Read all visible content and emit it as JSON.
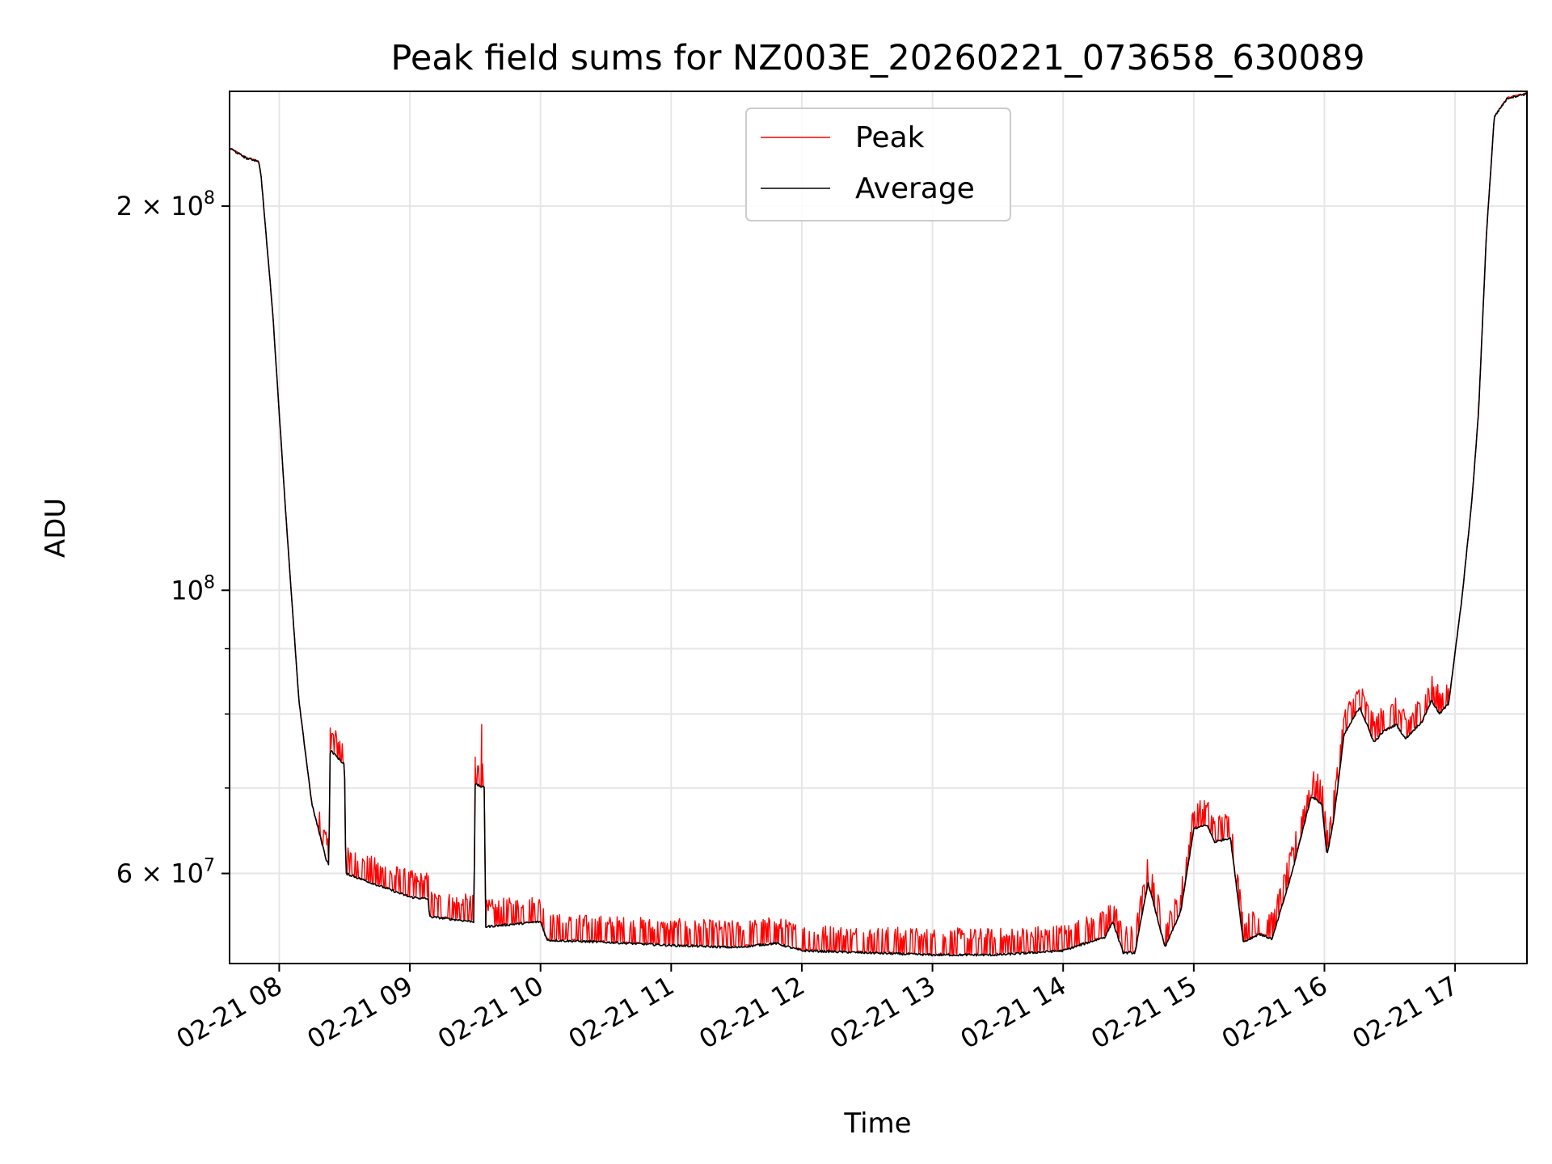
{
  "chart_data": {
    "type": "line",
    "title": "Peak field sums for NZ003E_20260221_073658_630089",
    "xlabel": "Time",
    "ylabel": "ADU",
    "yscale": "log",
    "ylim": [
      51000000,
      246000000
    ],
    "xlim_hours": [
      7.62,
      17.55
    ],
    "grid": true,
    "legend_position": "upper center",
    "x_ticks": [
      {
        "value": 8,
        "label": "02-21 08"
      },
      {
        "value": 9,
        "label": "02-21 09"
      },
      {
        "value": 10,
        "label": "02-21 10"
      },
      {
        "value": 11,
        "label": "02-21 11"
      },
      {
        "value": 12,
        "label": "02-21 12"
      },
      {
        "value": 13,
        "label": "02-21 13"
      },
      {
        "value": 14,
        "label": "02-21 14"
      },
      {
        "value": 15,
        "label": "02-21 15"
      },
      {
        "value": 16,
        "label": "02-21 16"
      },
      {
        "value": 17,
        "label": "02-21 17"
      }
    ],
    "y_major_ticks": [
      {
        "value": 60000000,
        "mantissa": "6",
        "exponent": "7"
      },
      {
        "value": 100000000,
        "mantissa": "",
        "exponent": "8"
      },
      {
        "value": 200000000,
        "mantissa": "2",
        "exponent": "8"
      }
    ],
    "y_minor_ticks": [
      70000000,
      80000000,
      90000000
    ],
    "y_label_base": "10",
    "y_label_times": "×",
    "series": [
      {
        "name": "Peak",
        "color": "#ff0000",
        "noise": 0.05,
        "spikes": [
          [
            8.39,
            78000000
          ],
          [
            9.55,
            78500000
          ],
          [
            9.5,
            74000000
          ],
          [
            15.0,
            66500000
          ],
          [
            17.18,
            140000000
          ]
        ]
      },
      {
        "name": "Average",
        "color": "#000000",
        "noise": 0.0,
        "spikes": []
      }
    ],
    "base_curve": [
      [
        7.62,
        222000000
      ],
      [
        7.75,
        218000000
      ],
      [
        7.84,
        217000000
      ],
      [
        7.86,
        212000000
      ],
      [
        7.95,
        165000000
      ],
      [
        8.05,
        115000000
      ],
      [
        8.15,
        82000000
      ],
      [
        8.25,
        68000000
      ],
      [
        8.36,
        61500000
      ],
      [
        8.38,
        61000000
      ],
      [
        8.39,
        75000000
      ],
      [
        8.5,
        73000000
      ],
      [
        8.51,
        60000000
      ],
      [
        9.0,
        57500000
      ],
      [
        9.14,
        57300000
      ],
      [
        9.15,
        55500000
      ],
      [
        9.49,
        55000000
      ],
      [
        9.5,
        70500000
      ],
      [
        9.57,
        70000000
      ],
      [
        9.58,
        54500000
      ],
      [
        10.0,
        55000000
      ],
      [
        10.05,
        53200000
      ],
      [
        10.5,
        53000000
      ],
      [
        11.0,
        52700000
      ],
      [
        11.5,
        52500000
      ],
      [
        11.8,
        52900000
      ],
      [
        12.0,
        52200000
      ],
      [
        12.5,
        52000000
      ],
      [
        13.0,
        51800000
      ],
      [
        13.5,
        51800000
      ],
      [
        14.0,
        52200000
      ],
      [
        14.32,
        53500000
      ],
      [
        14.38,
        55000000
      ],
      [
        14.46,
        52000000
      ],
      [
        14.55,
        52000000
      ],
      [
        14.65,
        59000000
      ],
      [
        14.78,
        52500000
      ],
      [
        14.9,
        56000000
      ],
      [
        15.0,
        65000000
      ],
      [
        15.1,
        65500000
      ],
      [
        15.16,
        63500000
      ],
      [
        15.28,
        64000000
      ],
      [
        15.38,
        53000000
      ],
      [
        15.5,
        53800000
      ],
      [
        15.6,
        53300000
      ],
      [
        15.75,
        60000000
      ],
      [
        15.9,
        69000000
      ],
      [
        15.98,
        68000000
      ],
      [
        16.02,
        62000000
      ],
      [
        16.07,
        66000000
      ],
      [
        16.15,
        77000000
      ],
      [
        16.27,
        81000000
      ],
      [
        16.38,
        76000000
      ],
      [
        16.45,
        77500000
      ],
      [
        16.55,
        78500000
      ],
      [
        16.62,
        76500000
      ],
      [
        16.75,
        79000000
      ],
      [
        16.82,
        82000000
      ],
      [
        16.88,
        80000000
      ],
      [
        16.95,
        81500000
      ],
      [
        17.05,
        98000000
      ],
      [
        17.13,
        118000000
      ],
      [
        17.18,
        138000000
      ],
      [
        17.24,
        190000000
      ],
      [
        17.3,
        235000000
      ],
      [
        17.4,
        243000000
      ],
      [
        17.55,
        245000000
      ]
    ]
  }
}
